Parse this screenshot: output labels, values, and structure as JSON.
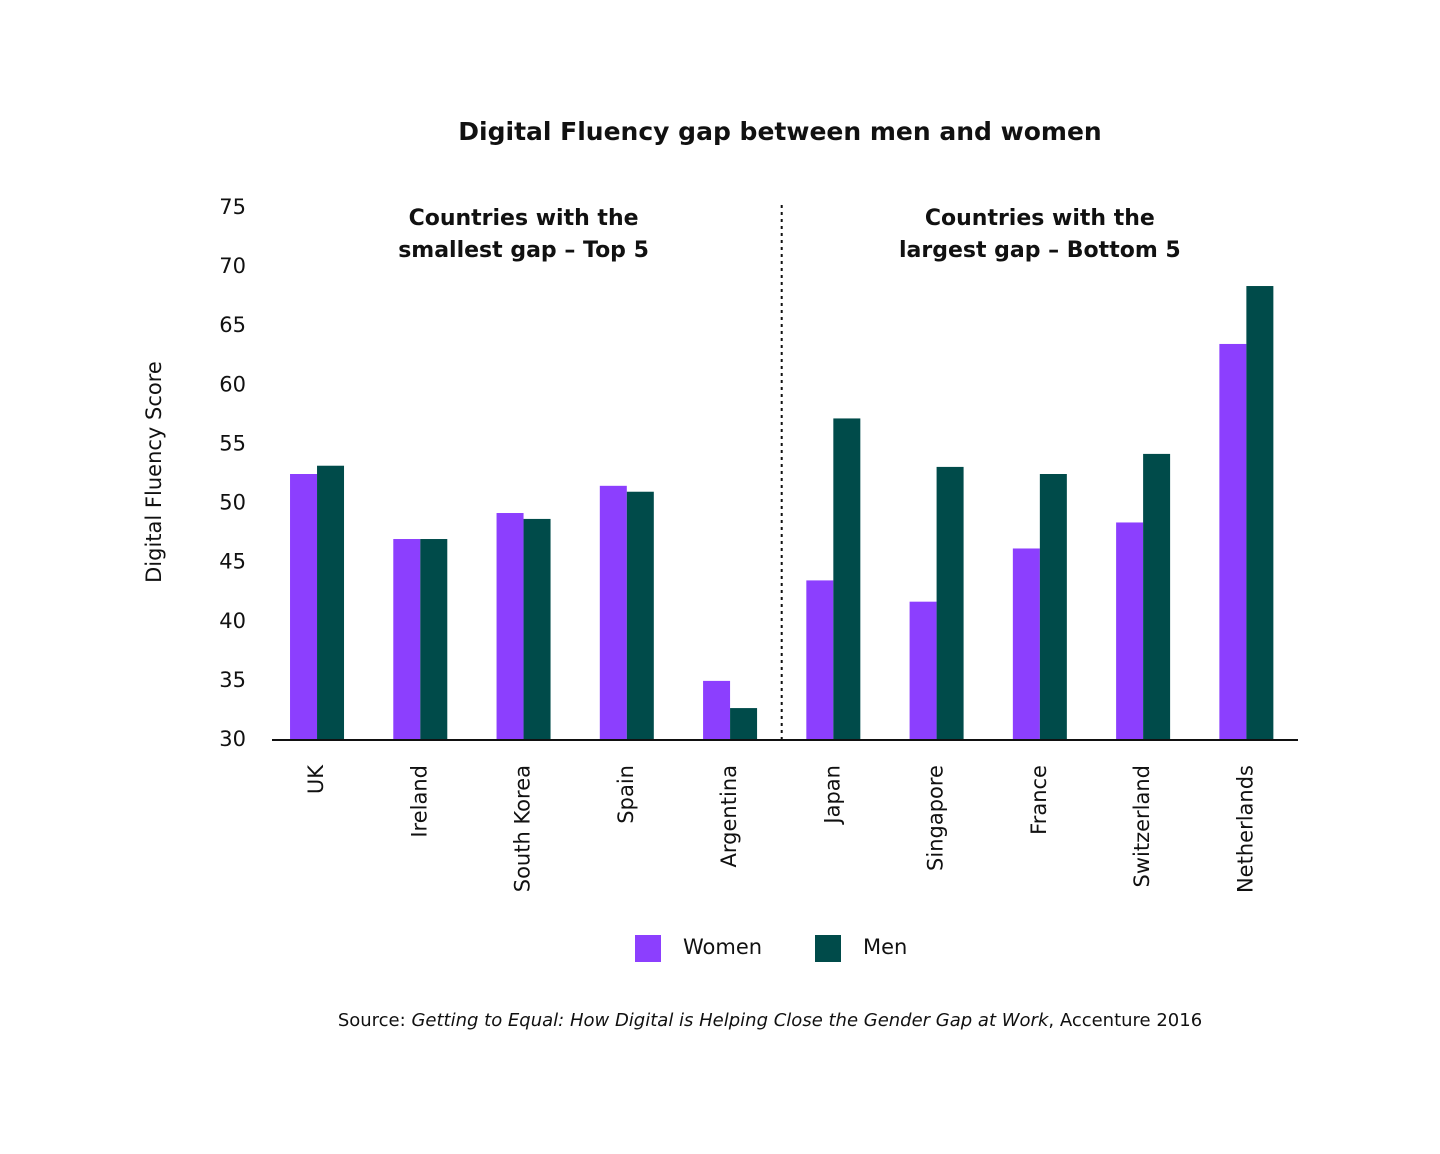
{
  "chart_data": {
    "type": "bar",
    "title": "Digital Fluency gap between men and women",
    "y_label": "Digital Fluency Score",
    "group_labels": [
      [
        "Countries with the",
        "smallest gap – Top 5"
      ],
      [
        "Countries with the",
        "largest gap – Bottom 5"
      ]
    ],
    "categories": [
      "UK",
      "Ireland",
      "South Korea",
      "Spain",
      "Argentina",
      "Japan",
      "Singapore",
      "France",
      "Switzerland",
      "Netherlands"
    ],
    "series": [
      {
        "name": "Women",
        "color": "#8c3ffe",
        "values": [
          52.5,
          47,
          49.2,
          51.5,
          35,
          43.5,
          41.7,
          46.2,
          48.4,
          63.5
        ]
      },
      {
        "name": "Men",
        "color": "#004b4a",
        "values": [
          53.2,
          47,
          48.7,
          51,
          32.7,
          57.2,
          53.1,
          52.5,
          54.2,
          68.4
        ]
      }
    ],
    "ylim": [
      30,
      75
    ],
    "yticks": [
      30,
      35,
      40,
      45,
      50,
      55,
      60,
      65,
      70,
      75
    ],
    "grid": false,
    "source": {
      "prefix": "Source:",
      "title": "Getting to Equal: How Digital is Helping Close the Gender Gap at Work",
      "suffix": ", Accenture 2016"
    }
  }
}
